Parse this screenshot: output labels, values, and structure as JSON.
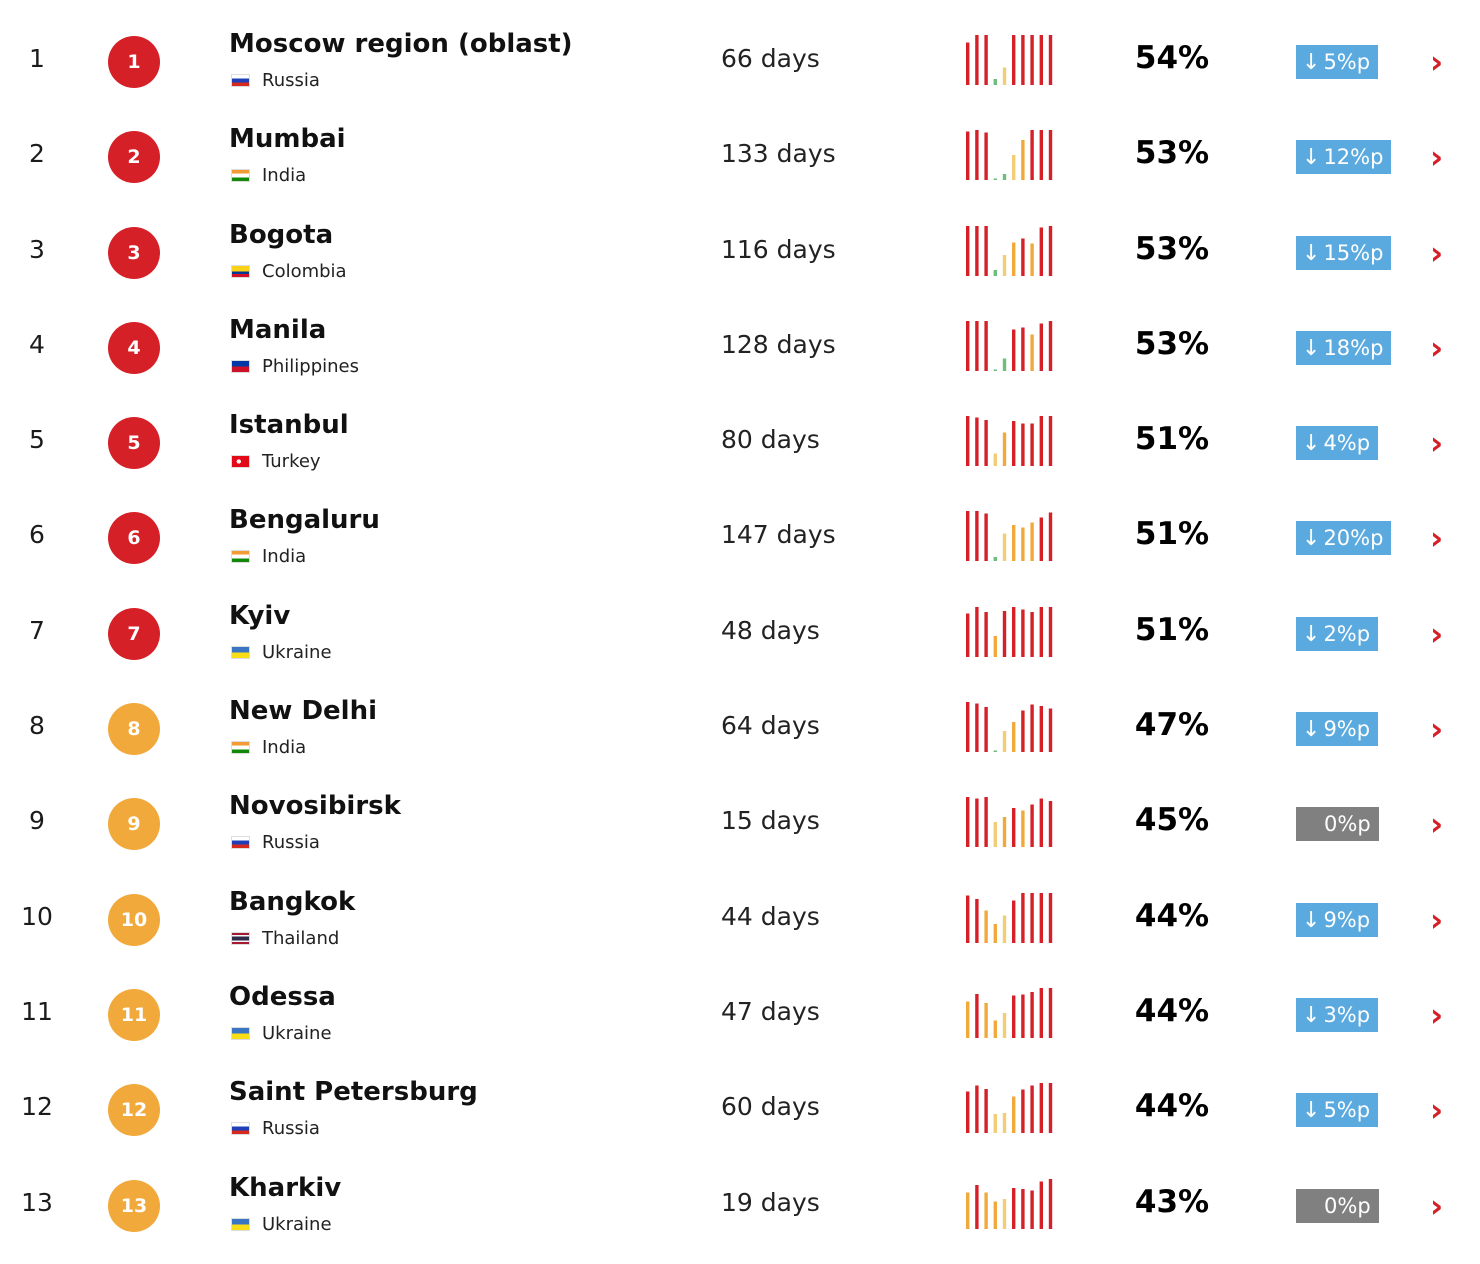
{
  "colors": {
    "red": "#d62027",
    "orange": "#f2a93b",
    "yellow": "#f3cd76",
    "green": "#6fbf7c",
    "blue": "#5baadf",
    "gray": "#808080"
  },
  "change_arrow": "↓",
  "more_icon": "›",
  "rows": [
    {
      "rank": "1",
      "badge": "1",
      "badge_color": "#d62027",
      "city": "Moscow region (oblast)",
      "country": "Russia",
      "flag": "russia",
      "days": "66 days",
      "history": [
        {
          "v": 0.85,
          "c": "#d62027"
        },
        {
          "v": 1.0,
          "c": "#d62027"
        },
        {
          "v": 1.0,
          "c": "#d62027"
        },
        {
          "v": 0.12,
          "c": "#6fbf7c"
        },
        {
          "v": 0.35,
          "c": "#f3cd76"
        },
        {
          "v": 1.0,
          "c": "#d62027"
        },
        {
          "v": 1.0,
          "c": "#d62027"
        },
        {
          "v": 1.0,
          "c": "#d62027"
        },
        {
          "v": 1.0,
          "c": "#d62027"
        },
        {
          "v": 1.0,
          "c": "#d62027"
        }
      ],
      "pct": "54%",
      "change": "5%p",
      "change_dir": "down"
    },
    {
      "rank": "2",
      "badge": "2",
      "badge_color": "#d62027",
      "city": "Mumbai",
      "country": "India",
      "flag": "india",
      "days": "133 days",
      "history": [
        {
          "v": 0.97,
          "c": "#d62027"
        },
        {
          "v": 1.0,
          "c": "#d62027"
        },
        {
          "v": 0.95,
          "c": "#d62027"
        },
        {
          "v": 0.03,
          "c": "#6fbf7c"
        },
        {
          "v": 0.12,
          "c": "#6fbf7c"
        },
        {
          "v": 0.5,
          "c": "#f3cd76"
        },
        {
          "v": 0.8,
          "c": "#f2a93b"
        },
        {
          "v": 1.0,
          "c": "#d62027"
        },
        {
          "v": 1.0,
          "c": "#d62027"
        },
        {
          "v": 1.0,
          "c": "#d62027"
        }
      ],
      "pct": "53%",
      "change": "12%p",
      "change_dir": "down"
    },
    {
      "rank": "3",
      "badge": "3",
      "badge_color": "#d62027",
      "city": "Bogota",
      "country": "Colombia",
      "flag": "colombia",
      "days": "116 days",
      "history": [
        {
          "v": 1.0,
          "c": "#d62027"
        },
        {
          "v": 1.0,
          "c": "#d62027"
        },
        {
          "v": 1.0,
          "c": "#d62027"
        },
        {
          "v": 0.12,
          "c": "#6fbf7c"
        },
        {
          "v": 0.42,
          "c": "#f3cd76"
        },
        {
          "v": 0.67,
          "c": "#f2a93b"
        },
        {
          "v": 0.75,
          "c": "#d62027"
        },
        {
          "v": 0.65,
          "c": "#f2a93b"
        },
        {
          "v": 0.97,
          "c": "#d62027"
        },
        {
          "v": 1.0,
          "c": "#d62027"
        }
      ],
      "pct": "53%",
      "change": "15%p",
      "change_dir": "down"
    },
    {
      "rank": "4",
      "badge": "4",
      "badge_color": "#d62027",
      "city": "Manila",
      "country": "Philippines",
      "flag": "philippines",
      "days": "128 days",
      "history": [
        {
          "v": 1.0,
          "c": "#d62027"
        },
        {
          "v": 1.0,
          "c": "#d62027"
        },
        {
          "v": 1.0,
          "c": "#d62027"
        },
        {
          "v": 0.0,
          "c": "#6fbf7c"
        },
        {
          "v": 0.25,
          "c": "#6fbf7c"
        },
        {
          "v": 0.83,
          "c": "#d62027"
        },
        {
          "v": 0.87,
          "c": "#d62027"
        },
        {
          "v": 0.73,
          "c": "#f2a93b"
        },
        {
          "v": 0.95,
          "c": "#d62027"
        },
        {
          "v": 1.0,
          "c": "#d62027"
        }
      ],
      "pct": "53%",
      "change": "18%p",
      "change_dir": "down"
    },
    {
      "rank": "5",
      "badge": "5",
      "badge_color": "#d62027",
      "city": "Istanbul",
      "country": "Turkey",
      "flag": "turkey",
      "days": "80 days",
      "history": [
        {
          "v": 1.0,
          "c": "#d62027"
        },
        {
          "v": 0.97,
          "c": "#d62027"
        },
        {
          "v": 0.92,
          "c": "#d62027"
        },
        {
          "v": 0.25,
          "c": "#f3cd76"
        },
        {
          "v": 0.67,
          "c": "#f2a93b"
        },
        {
          "v": 0.9,
          "c": "#d62027"
        },
        {
          "v": 0.85,
          "c": "#d62027"
        },
        {
          "v": 0.85,
          "c": "#d62027"
        },
        {
          "v": 1.0,
          "c": "#d62027"
        },
        {
          "v": 1.0,
          "c": "#d62027"
        }
      ],
      "pct": "51%",
      "change": "4%p",
      "change_dir": "down"
    },
    {
      "rank": "6",
      "badge": "6",
      "badge_color": "#d62027",
      "city": "Bengaluru",
      "country": "India",
      "flag": "india",
      "days": "147 days",
      "history": [
        {
          "v": 1.0,
          "c": "#d62027"
        },
        {
          "v": 1.0,
          "c": "#d62027"
        },
        {
          "v": 0.95,
          "c": "#d62027"
        },
        {
          "v": 0.08,
          "c": "#6fbf7c"
        },
        {
          "v": 0.55,
          "c": "#f3cd76"
        },
        {
          "v": 0.72,
          "c": "#f2a93b"
        },
        {
          "v": 0.67,
          "c": "#f2a93b"
        },
        {
          "v": 0.77,
          "c": "#f2a93b"
        },
        {
          "v": 0.87,
          "c": "#d62027"
        },
        {
          "v": 0.97,
          "c": "#d62027"
        }
      ],
      "pct": "51%",
      "change": "20%p",
      "change_dir": "down"
    },
    {
      "rank": "7",
      "badge": "7",
      "badge_color": "#d62027",
      "city": "Kyiv",
      "country": "Ukraine",
      "flag": "ukraine",
      "days": "48 days",
      "history": [
        {
          "v": 0.87,
          "c": "#d62027"
        },
        {
          "v": 1.0,
          "c": "#d62027"
        },
        {
          "v": 0.9,
          "c": "#d62027"
        },
        {
          "v": 0.42,
          "c": "#f2a93b"
        },
        {
          "v": 0.92,
          "c": "#d62027"
        },
        {
          "v": 1.0,
          "c": "#d62027"
        },
        {
          "v": 0.95,
          "c": "#d62027"
        },
        {
          "v": 0.9,
          "c": "#d62027"
        },
        {
          "v": 1.0,
          "c": "#d62027"
        },
        {
          "v": 1.0,
          "c": "#d62027"
        }
      ],
      "pct": "51%",
      "change": "2%p",
      "change_dir": "down"
    },
    {
      "rank": "8",
      "badge": "8",
      "badge_color": "#f2a93b",
      "city": "New Delhi",
      "country": "India",
      "flag": "india",
      "days": "64 days",
      "history": [
        {
          "v": 1.0,
          "c": "#d62027"
        },
        {
          "v": 0.97,
          "c": "#d62027"
        },
        {
          "v": 0.9,
          "c": "#d62027"
        },
        {
          "v": 0.03,
          "c": "#6fbf7c"
        },
        {
          "v": 0.42,
          "c": "#f3cd76"
        },
        {
          "v": 0.6,
          "c": "#f2a93b"
        },
        {
          "v": 0.83,
          "c": "#d62027"
        },
        {
          "v": 0.95,
          "c": "#d62027"
        },
        {
          "v": 0.92,
          "c": "#d62027"
        },
        {
          "v": 0.87,
          "c": "#d62027"
        }
      ],
      "pct": "47%",
      "change": "9%p",
      "change_dir": "down"
    },
    {
      "rank": "9",
      "badge": "9",
      "badge_color": "#f2a93b",
      "city": "Novosibirsk",
      "country": "Russia",
      "flag": "russia",
      "days": "15 days",
      "history": [
        {
          "v": 1.0,
          "c": "#d62027"
        },
        {
          "v": 0.97,
          "c": "#d62027"
        },
        {
          "v": 1.0,
          "c": "#d62027"
        },
        {
          "v": 0.5,
          "c": "#f3cd76"
        },
        {
          "v": 0.6,
          "c": "#f2a93b"
        },
        {
          "v": 0.78,
          "c": "#d62027"
        },
        {
          "v": 0.73,
          "c": "#f2a93b"
        },
        {
          "v": 0.85,
          "c": "#d62027"
        },
        {
          "v": 0.97,
          "c": "#d62027"
        },
        {
          "v": 0.92,
          "c": "#d62027"
        }
      ],
      "pct": "45%",
      "change": "0%p",
      "change_dir": "none"
    },
    {
      "rank": "10",
      "badge": "10",
      "badge_color": "#f2a93b",
      "city": "Bangkok",
      "country": "Thailand",
      "flag": "thailand",
      "days": "44 days",
      "history": [
        {
          "v": 0.95,
          "c": "#d62027"
        },
        {
          "v": 0.88,
          "c": "#d62027"
        },
        {
          "v": 0.65,
          "c": "#f2a93b"
        },
        {
          "v": 0.38,
          "c": "#f2a93b"
        },
        {
          "v": 0.55,
          "c": "#f3cd76"
        },
        {
          "v": 0.85,
          "c": "#d62027"
        },
        {
          "v": 1.0,
          "c": "#d62027"
        },
        {
          "v": 1.0,
          "c": "#d62027"
        },
        {
          "v": 1.0,
          "c": "#d62027"
        },
        {
          "v": 1.0,
          "c": "#d62027"
        }
      ],
      "pct": "44%",
      "change": "9%p",
      "change_dir": "down"
    },
    {
      "rank": "11",
      "badge": "11",
      "badge_color": "#f2a93b",
      "city": "Odessa",
      "country": "Ukraine",
      "flag": "ukraine",
      "days": "47 days",
      "history": [
        {
          "v": 0.73,
          "c": "#f2a93b"
        },
        {
          "v": 0.88,
          "c": "#d62027"
        },
        {
          "v": 0.7,
          "c": "#f2a93b"
        },
        {
          "v": 0.35,
          "c": "#f2a93b"
        },
        {
          "v": 0.5,
          "c": "#f3cd76"
        },
        {
          "v": 0.85,
          "c": "#d62027"
        },
        {
          "v": 0.87,
          "c": "#d62027"
        },
        {
          "v": 0.92,
          "c": "#d62027"
        },
        {
          "v": 1.0,
          "c": "#d62027"
        },
        {
          "v": 1.0,
          "c": "#d62027"
        }
      ],
      "pct": "44%",
      "change": "3%p",
      "change_dir": "down"
    },
    {
      "rank": "12",
      "badge": "12",
      "badge_color": "#f2a93b",
      "city": "Saint Petersburg",
      "country": "Russia",
      "flag": "russia",
      "days": "60 days",
      "history": [
        {
          "v": 0.83,
          "c": "#d62027"
        },
        {
          "v": 0.95,
          "c": "#d62027"
        },
        {
          "v": 0.88,
          "c": "#d62027"
        },
        {
          "v": 0.38,
          "c": "#f3cd76"
        },
        {
          "v": 0.4,
          "c": "#f3cd76"
        },
        {
          "v": 0.73,
          "c": "#f2a93b"
        },
        {
          "v": 0.87,
          "c": "#d62027"
        },
        {
          "v": 0.95,
          "c": "#d62027"
        },
        {
          "v": 1.0,
          "c": "#d62027"
        },
        {
          "v": 1.0,
          "c": "#d62027"
        }
      ],
      "pct": "44%",
      "change": "5%p",
      "change_dir": "down"
    },
    {
      "rank": "13",
      "badge": "13",
      "badge_color": "#f2a93b",
      "city": "Kharkiv",
      "country": "Ukraine",
      "flag": "ukraine",
      "days": "19 days",
      "history": [
        {
          "v": 0.73,
          "c": "#f2a93b"
        },
        {
          "v": 0.88,
          "c": "#d62027"
        },
        {
          "v": 0.73,
          "c": "#f2a93b"
        },
        {
          "v": 0.55,
          "c": "#f2a93b"
        },
        {
          "v": 0.6,
          "c": "#f3cd76"
        },
        {
          "v": 0.82,
          "c": "#d62027"
        },
        {
          "v": 0.8,
          "c": "#d62027"
        },
        {
          "v": 0.77,
          "c": "#d62027"
        },
        {
          "v": 0.95,
          "c": "#d62027"
        },
        {
          "v": 1.0,
          "c": "#d62027"
        }
      ],
      "pct": "43%",
      "change": "0%p",
      "change_dir": "none"
    }
  ]
}
